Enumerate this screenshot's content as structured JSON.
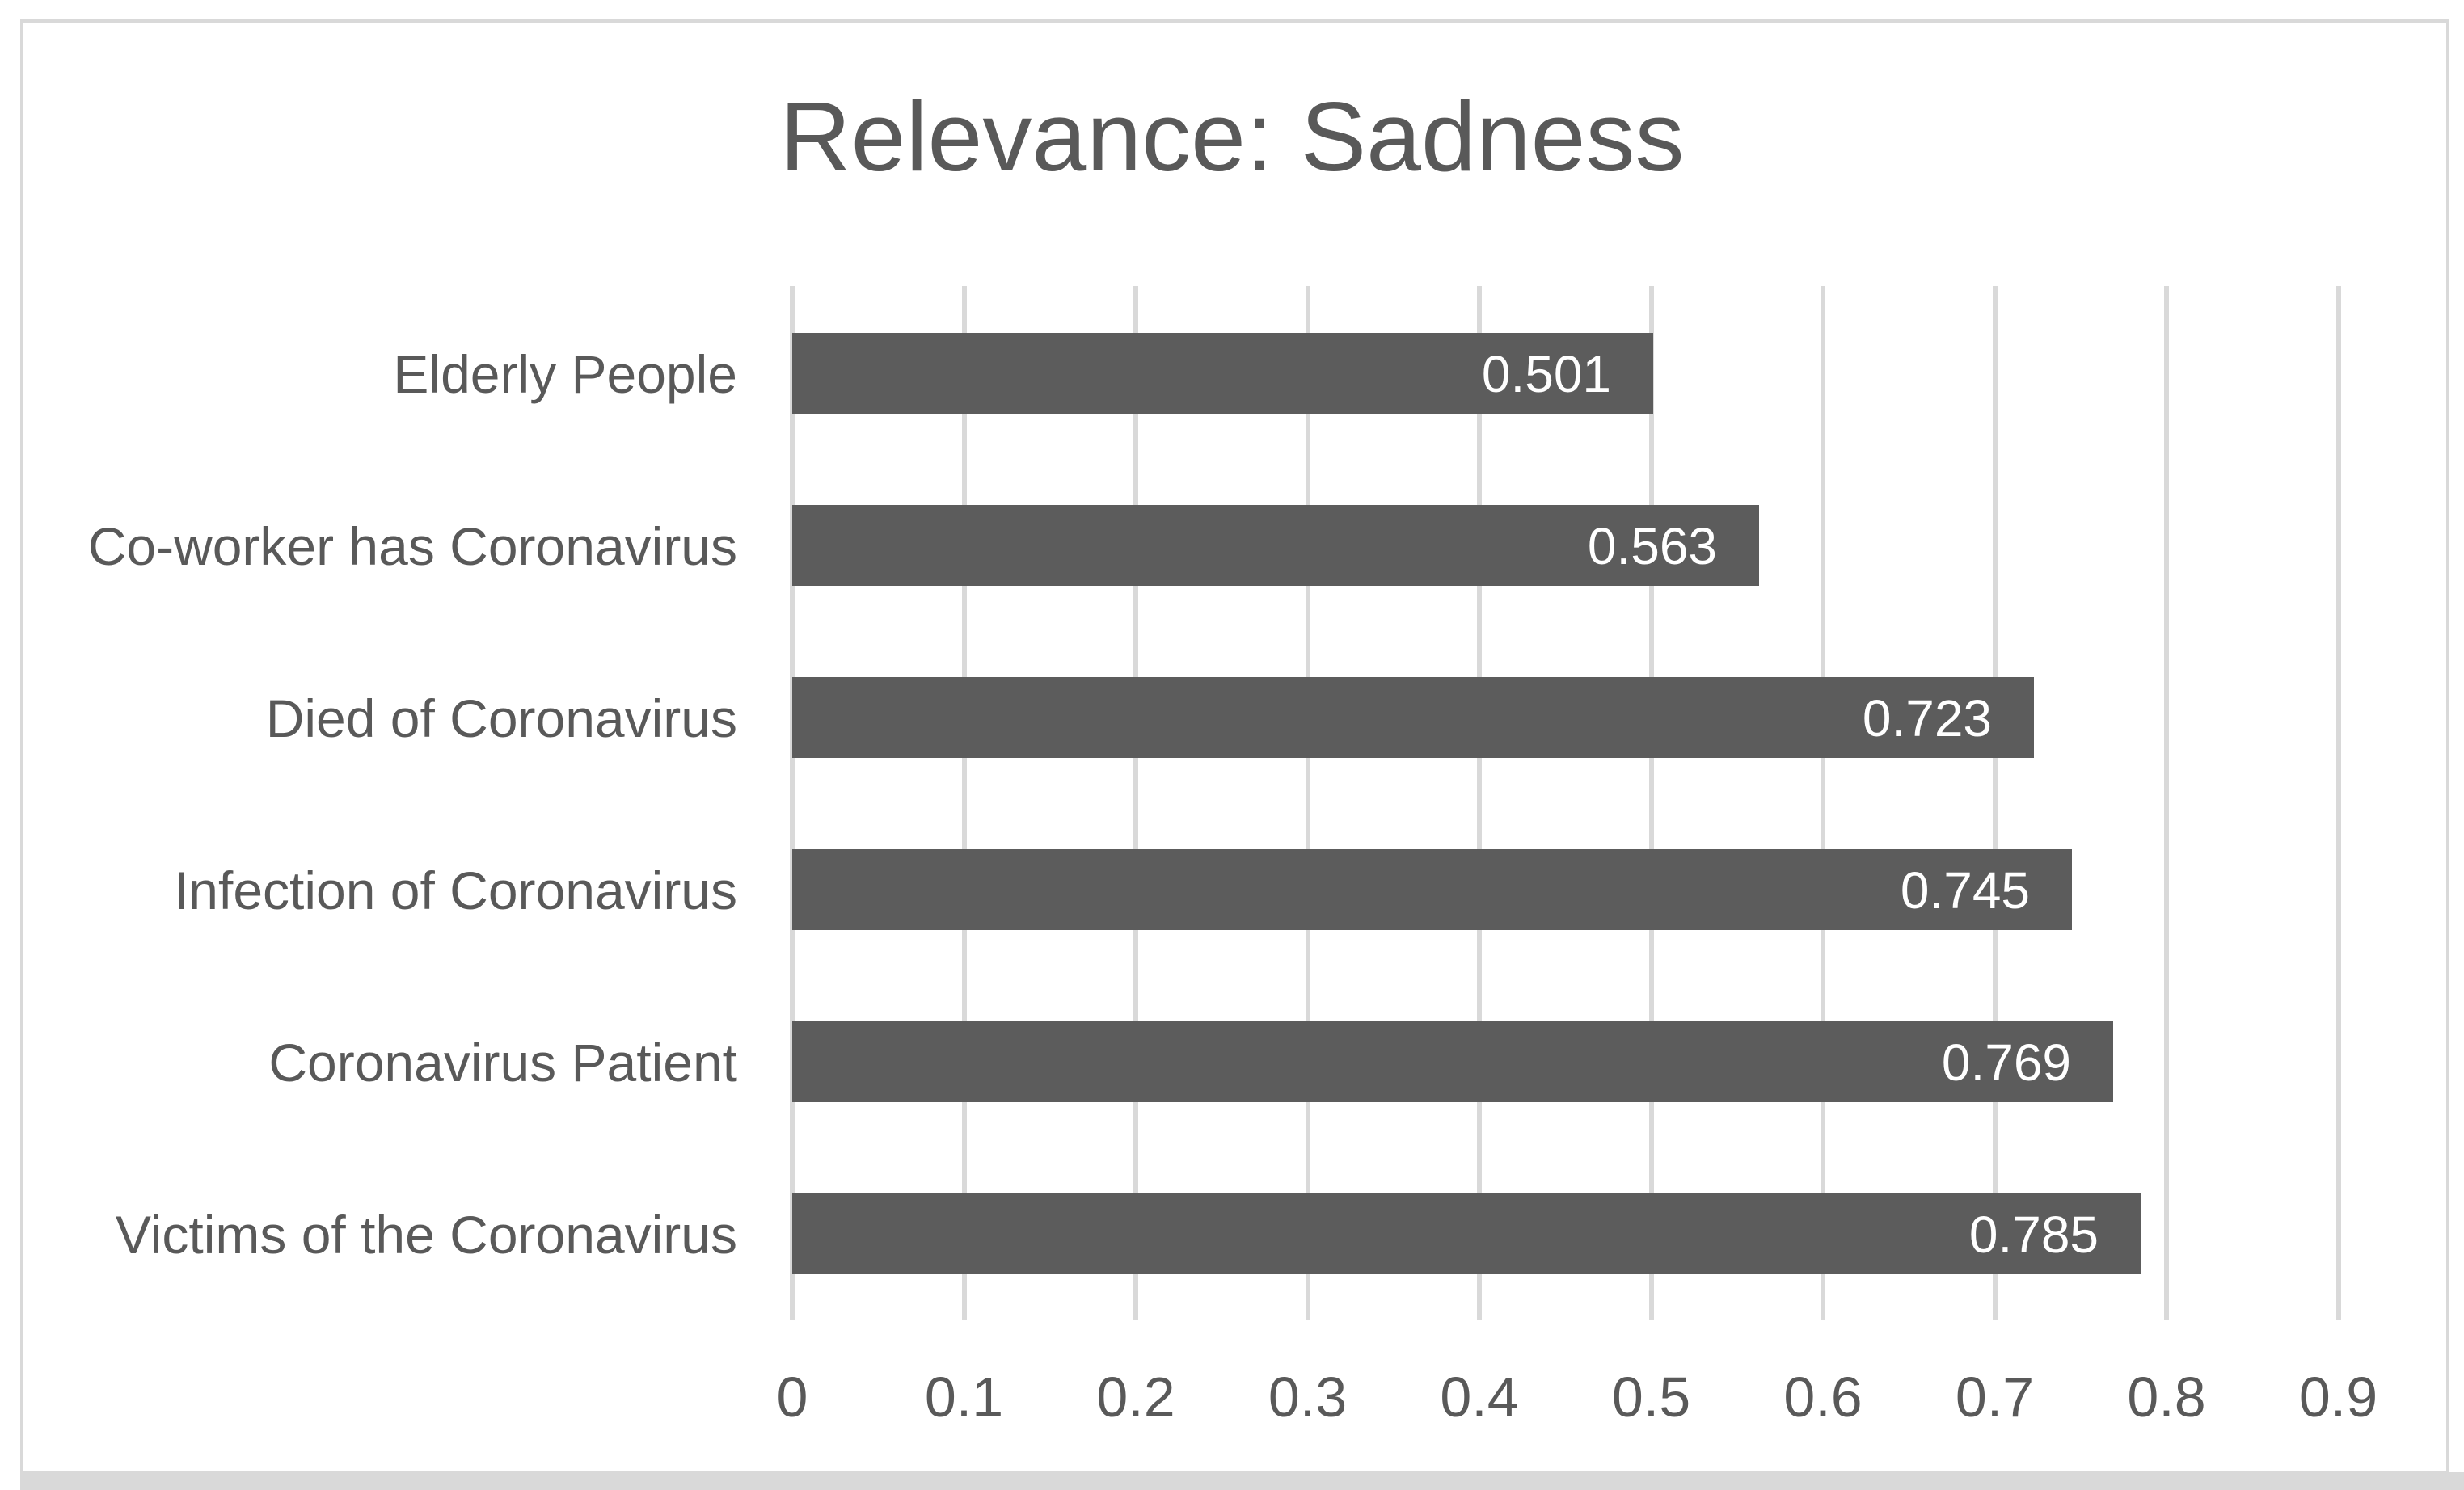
{
  "chart_data": {
    "type": "bar",
    "orientation": "horizontal",
    "title": "Relevance: Sadness",
    "categories": [
      "Elderly People",
      "Co-worker has Coronavirus",
      "Died of Coronavirus",
      "Infection of Coronavirus",
      "Coronavirus Patient",
      "Victims of the Coronavirus"
    ],
    "values": [
      0.501,
      0.563,
      0.723,
      0.745,
      0.769,
      0.785
    ],
    "value_labels": [
      "0.501",
      "0.563",
      "0.723",
      "0.745",
      "0.769",
      "0.785"
    ],
    "x_ticks": [
      "0",
      "0.1",
      "0.2",
      "0.3",
      "0.4",
      "0.5",
      "0.6",
      "0.7",
      "0.8",
      "0.9"
    ],
    "xlim": [
      0,
      0.9
    ],
    "xlabel": "",
    "ylabel": "",
    "grid": "vertical-gridlines",
    "legend": "none",
    "colors": {
      "bar": "#5c5c5c",
      "value_label": "#ffffff",
      "text": "#595959",
      "gridline": "#d9d9d9",
      "border": "#d9d9d9",
      "background": "#ffffff"
    }
  }
}
